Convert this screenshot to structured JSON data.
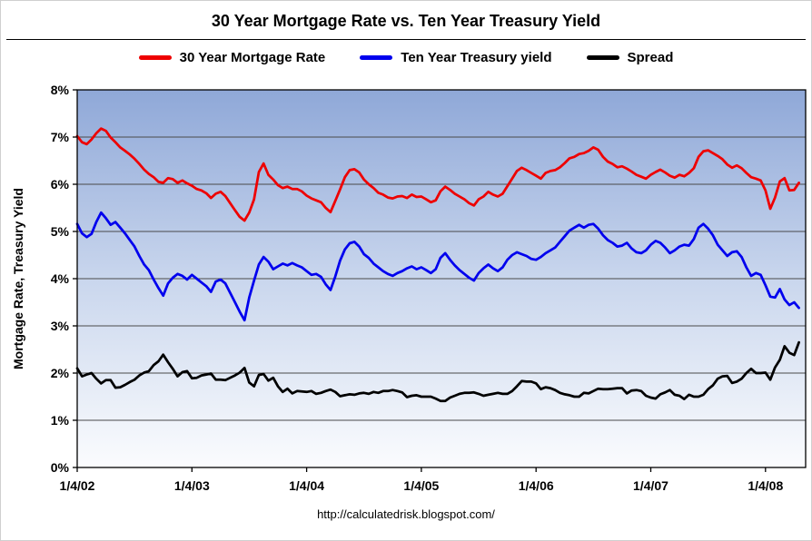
{
  "chart_data": {
    "type": "line",
    "title": "30 Year Mortgage Rate vs. Ten Year Treasury Yield",
    "ylabel": "Mortgage Rate, Treasury Yield",
    "footer": "http://calculatedrisk.blogspot.com/",
    "x_tick_labels": [
      "1/4/02",
      "1/4/03",
      "1/4/04",
      "1/4/05",
      "1/4/06",
      "1/4/07",
      "1/4/08"
    ],
    "y_tick_labels": [
      "0%",
      "1%",
      "2%",
      "3%",
      "4%",
      "5%",
      "6%",
      "7%",
      "8%"
    ],
    "ylim": [
      0,
      8
    ],
    "x_start": "1/4/02",
    "x_span_years": 6.35,
    "points_per_year": 24,
    "grid": "horizontal",
    "legend_position": "top",
    "gridline_color": "#4a4a4a",
    "plot_gradient": [
      "#8FA8D8",
      "#C9D6ED",
      "#FBFCFE"
    ],
    "series": [
      {
        "name": "30 Year Mortgage Rate",
        "color": "#EE0000",
        "values": [
          7.02,
          6.89,
          6.85,
          6.95,
          7.08,
          7.18,
          7.13,
          6.99,
          6.89,
          6.78,
          6.71,
          6.63,
          6.54,
          6.43,
          6.31,
          6.22,
          6.15,
          6.05,
          6.03,
          6.13,
          6.11,
          6.03,
          6.08,
          6.02,
          5.97,
          5.9,
          5.87,
          5.81,
          5.71,
          5.8,
          5.84,
          5.75,
          5.6,
          5.45,
          5.31,
          5.23,
          5.4,
          5.68,
          6.26,
          6.44,
          6.2,
          6.1,
          5.98,
          5.92,
          5.95,
          5.9,
          5.9,
          5.85,
          5.76,
          5.7,
          5.66,
          5.62,
          5.5,
          5.41,
          5.65,
          5.89,
          6.15,
          6.3,
          6.32,
          6.25,
          6.1,
          6.0,
          5.92,
          5.82,
          5.78,
          5.72,
          5.7,
          5.74,
          5.75,
          5.71,
          5.78,
          5.73,
          5.74,
          5.68,
          5.62,
          5.66,
          5.85,
          5.95,
          5.88,
          5.8,
          5.74,
          5.68,
          5.6,
          5.55,
          5.68,
          5.74,
          5.84,
          5.78,
          5.74,
          5.8,
          5.96,
          6.12,
          6.28,
          6.35,
          6.3,
          6.24,
          6.18,
          6.12,
          6.24,
          6.28,
          6.3,
          6.36,
          6.45,
          6.55,
          6.58,
          6.64,
          6.66,
          6.71,
          6.78,
          6.73,
          6.58,
          6.48,
          6.43,
          6.36,
          6.38,
          6.33,
          6.27,
          6.2,
          6.16,
          6.12,
          6.2,
          6.26,
          6.31,
          6.25,
          6.18,
          6.14,
          6.2,
          6.17,
          6.24,
          6.34,
          6.58,
          6.7,
          6.72,
          6.66,
          6.6,
          6.53,
          6.42,
          6.35,
          6.4,
          6.34,
          6.24,
          6.15,
          6.12,
          6.08,
          5.87,
          5.48,
          5.72,
          6.06,
          6.13,
          5.87,
          5.88,
          6.03
        ]
      },
      {
        "name": "Ten Year Treasury yield",
        "color": "#0000EE",
        "values": [
          5.16,
          4.96,
          4.88,
          4.95,
          5.2,
          5.4,
          5.28,
          5.14,
          5.2,
          5.08,
          4.96,
          4.82,
          4.68,
          4.48,
          4.3,
          4.18,
          3.98,
          3.8,
          3.64,
          3.9,
          4.02,
          4.1,
          4.06,
          3.98,
          4.08,
          4.0,
          3.92,
          3.84,
          3.72,
          3.94,
          3.98,
          3.9,
          3.7,
          3.5,
          3.3,
          3.12,
          3.6,
          3.96,
          4.3,
          4.46,
          4.36,
          4.2,
          4.26,
          4.32,
          4.28,
          4.33,
          4.28,
          4.24,
          4.16,
          4.08,
          4.1,
          4.04,
          3.88,
          3.76,
          4.05,
          4.38,
          4.62,
          4.75,
          4.78,
          4.68,
          4.52,
          4.44,
          4.32,
          4.24,
          4.16,
          4.1,
          4.06,
          4.12,
          4.16,
          4.22,
          4.26,
          4.2,
          4.24,
          4.18,
          4.12,
          4.2,
          4.44,
          4.54,
          4.4,
          4.28,
          4.18,
          4.1,
          4.02,
          3.96,
          4.12,
          4.22,
          4.3,
          4.22,
          4.16,
          4.24,
          4.4,
          4.5,
          4.56,
          4.52,
          4.48,
          4.42,
          4.4,
          4.46,
          4.54,
          4.6,
          4.66,
          4.78,
          4.9,
          5.02,
          5.08,
          5.14,
          5.08,
          5.14,
          5.16,
          5.06,
          4.92,
          4.82,
          4.76,
          4.68,
          4.7,
          4.76,
          4.64,
          4.56,
          4.54,
          4.6,
          4.72,
          4.8,
          4.76,
          4.66,
          4.54,
          4.6,
          4.68,
          4.72,
          4.7,
          4.84,
          5.08,
          5.16,
          5.06,
          4.92,
          4.72,
          4.6,
          4.48,
          4.56,
          4.58,
          4.46,
          4.24,
          4.06,
          4.12,
          4.08,
          3.86,
          3.62,
          3.6,
          3.78,
          3.56,
          3.44,
          3.5,
          3.38
        ]
      },
      {
        "name": "Spread",
        "color": "#000000",
        "values": [
          2.1,
          1.93,
          1.97,
          2.0,
          1.88,
          1.78,
          1.85,
          1.85,
          1.69,
          1.7,
          1.75,
          1.81,
          1.86,
          1.95,
          2.01,
          2.04,
          2.17,
          2.25,
          2.39,
          2.23,
          2.09,
          1.93,
          2.02,
          2.04,
          1.89,
          1.9,
          1.95,
          1.97,
          1.99,
          1.86,
          1.86,
          1.85,
          1.9,
          1.95,
          2.01,
          2.11,
          1.8,
          1.72,
          1.96,
          1.98,
          1.84,
          1.9,
          1.72,
          1.6,
          1.67,
          1.57,
          1.62,
          1.61,
          1.6,
          1.62,
          1.56,
          1.58,
          1.62,
          1.65,
          1.6,
          1.51,
          1.53,
          1.55,
          1.54,
          1.57,
          1.58,
          1.56,
          1.6,
          1.58,
          1.62,
          1.62,
          1.64,
          1.62,
          1.59,
          1.49,
          1.52,
          1.53,
          1.5,
          1.5,
          1.5,
          1.46,
          1.41,
          1.41,
          1.48,
          1.52,
          1.56,
          1.58,
          1.58,
          1.59,
          1.56,
          1.52,
          1.54,
          1.56,
          1.58,
          1.56,
          1.56,
          1.62,
          1.72,
          1.83,
          1.82,
          1.82,
          1.78,
          1.66,
          1.7,
          1.68,
          1.64,
          1.58,
          1.55,
          1.53,
          1.5,
          1.5,
          1.58,
          1.57,
          1.62,
          1.67,
          1.66,
          1.66,
          1.67,
          1.68,
          1.68,
          1.57,
          1.63,
          1.64,
          1.62,
          1.52,
          1.48,
          1.46,
          1.55,
          1.59,
          1.64,
          1.54,
          1.52,
          1.45,
          1.54,
          1.5,
          1.5,
          1.54,
          1.66,
          1.74,
          1.88,
          1.93,
          1.94,
          1.79,
          1.82,
          1.88,
          2.0,
          2.09,
          2.0,
          2.0,
          2.01,
          1.86,
          2.12,
          2.28,
          2.57,
          2.43,
          2.38,
          2.65
        ]
      }
    ]
  }
}
